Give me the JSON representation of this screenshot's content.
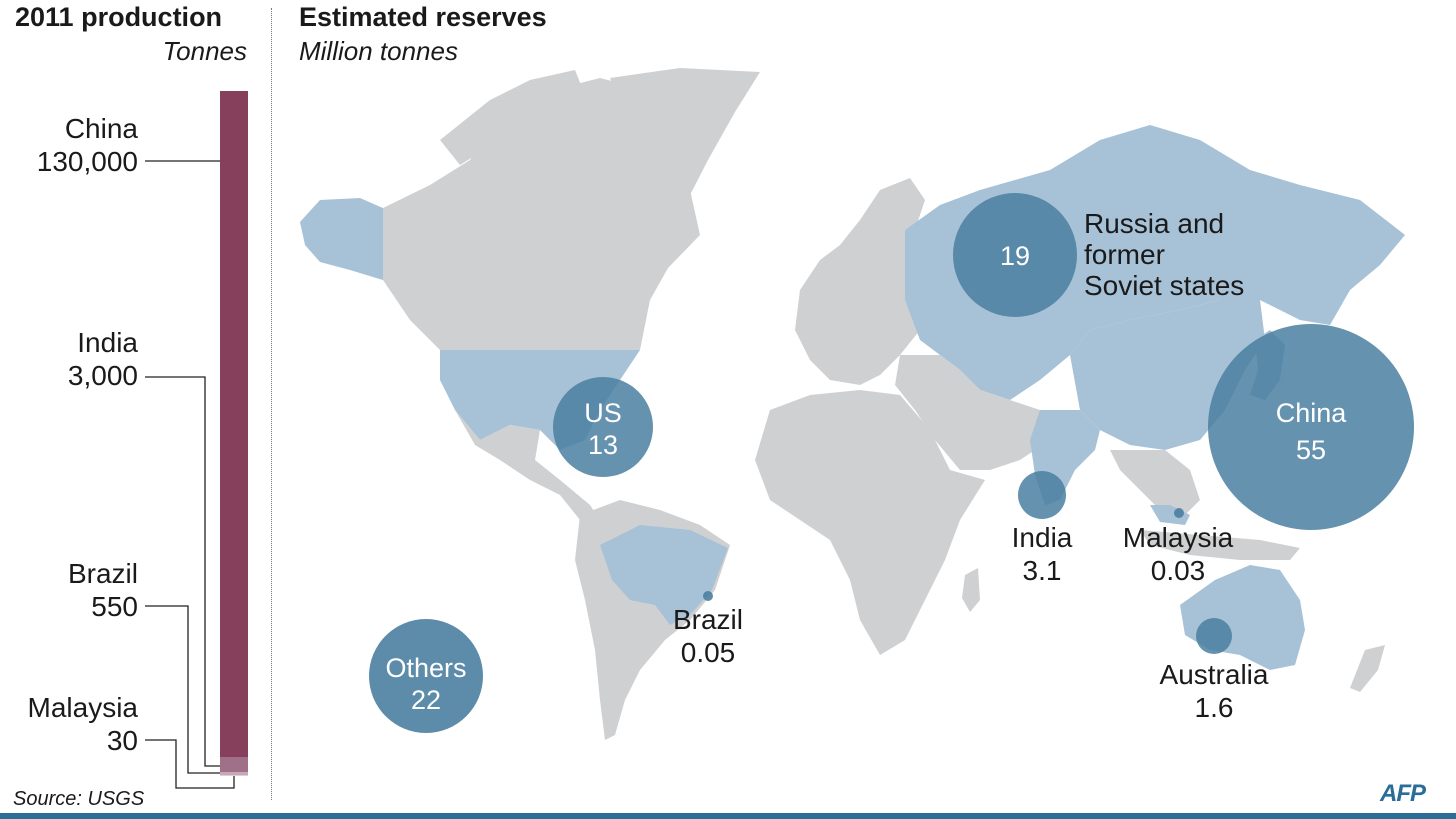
{
  "production": {
    "title": "2011 production",
    "unit": "Tonnes",
    "bar_color": "#86405c",
    "entries": [
      {
        "name": "China",
        "value_label": "130,000",
        "value": 130000
      },
      {
        "name": "India",
        "value_label": "3,000",
        "value": 3000
      },
      {
        "name": "Brazil",
        "value_label": "550",
        "value": 550
      },
      {
        "name": "Malaysia",
        "value_label": "30",
        "value": 30
      }
    ]
  },
  "reserves": {
    "title": "Estimated reserves",
    "unit": "Million tonnes",
    "bubble_color": "#4a7fa0",
    "highlight_country_color": "#a7c1d6",
    "other_land_color": "#cfd0d1",
    "bubbles": [
      {
        "name": "Russia and former Soviet states",
        "value_label": "19",
        "value": 19
      },
      {
        "name": "US",
        "value_label": "13",
        "value": 13
      },
      {
        "name": "China",
        "value_label": "55",
        "value": 55
      },
      {
        "name": "India",
        "value_label": "3.1",
        "value": 3.1
      },
      {
        "name": "Malaysia",
        "value_label": "0.03",
        "value": 0.03
      },
      {
        "name": "Brazil",
        "value_label": "0.05",
        "value": 0.05
      },
      {
        "name": "Australia",
        "value_label": "1.6",
        "value": 1.6
      },
      {
        "name": "Others",
        "value_label": "22",
        "value": 22
      }
    ]
  },
  "labels": {
    "russia_line1": "Russia and",
    "russia_line2": "former",
    "russia_line3": "Soviet states"
  },
  "footer": {
    "source": "Source: USGS",
    "logo": "AFP",
    "bar_color": "#2a6d96"
  }
}
